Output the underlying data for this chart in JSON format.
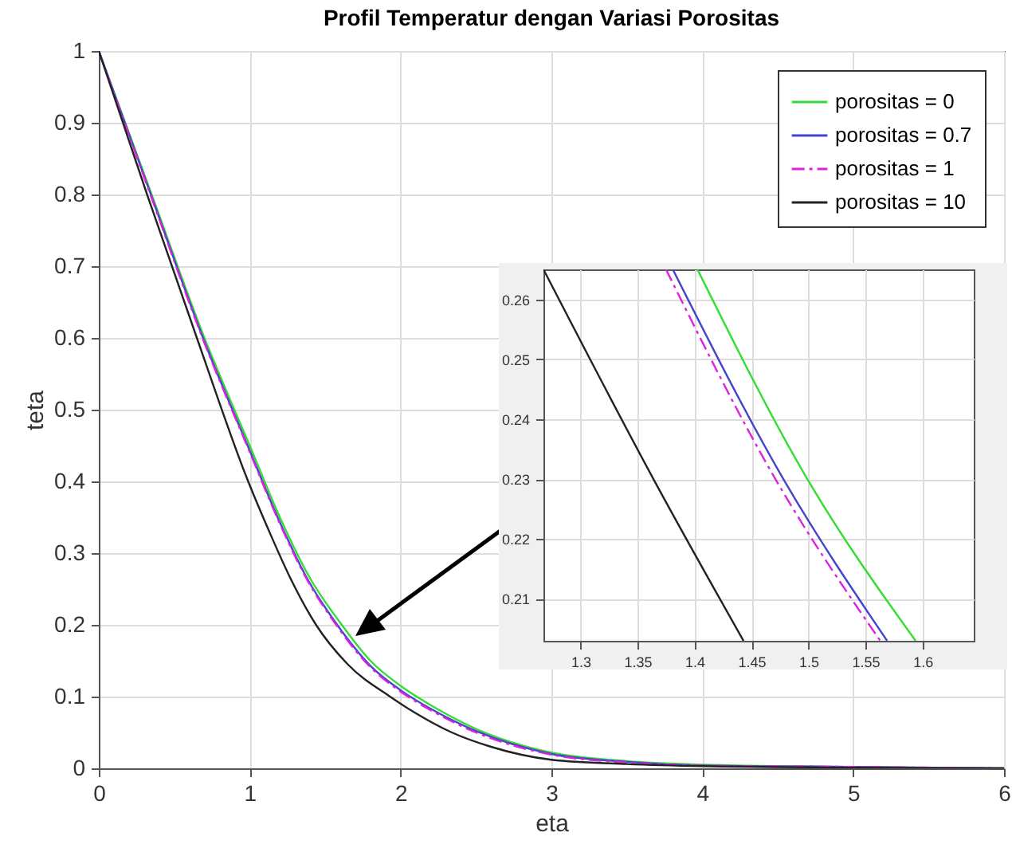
{
  "chart_data": [
    {
      "type": "line",
      "title": "Profil Temperatur dengan Variasi Porositas",
      "xlabel": "eta",
      "ylabel": "teta",
      "xlim": [
        0,
        6
      ],
      "xticks": [
        0,
        1,
        2,
        3,
        4,
        5,
        6
      ],
      "ylim": [
        0,
        1
      ],
      "yticks": [
        0,
        0.1,
        0.2,
        0.3,
        0.4,
        0.5,
        0.6,
        0.7,
        0.8,
        0.9,
        1
      ],
      "grid": true,
      "legend": "top right",
      "series": [
        {
          "name": "porositas = 0",
          "color": "#33dd33",
          "line_style": "solid",
          "x": [
            0,
            0.35,
            0.7,
            1,
            1.2,
            1.4,
            1.6,
            1.8,
            2,
            2.2,
            2.5,
            3,
            3.5,
            4,
            5,
            6
          ],
          "values": [
            1,
            0.8,
            0.6,
            0.45,
            0.35,
            0.265,
            0.203,
            0.15,
            0.115,
            0.088,
            0.055,
            0.022,
            0.01,
            0.005,
            0.002,
            0
          ]
        },
        {
          "name": "porositas = 0.7",
          "color": "#4444cc",
          "line_style": "solid",
          "x": [
            0,
            0.35,
            0.7,
            1,
            1.2,
            1.38,
            1.57,
            1.8,
            2,
            2.2,
            2.5,
            3,
            3.5,
            4,
            5,
            6
          ],
          "values": [
            1,
            0.797,
            0.595,
            0.443,
            0.343,
            0.265,
            0.203,
            0.143,
            0.109,
            0.083,
            0.052,
            0.02,
            0.009,
            0.004,
            0.002,
            0
          ]
        },
        {
          "name": "porositas = 1",
          "color": "#dd22dd",
          "line_style": "dashed",
          "x": [
            0,
            0.35,
            0.7,
            1,
            1.2,
            1.375,
            1.563,
            1.8,
            2,
            2.2,
            2.5,
            3,
            3.5,
            4,
            5,
            6
          ],
          "values": [
            1,
            0.795,
            0.593,
            0.441,
            0.341,
            0.265,
            0.203,
            0.141,
            0.107,
            0.081,
            0.05,
            0.019,
            0.008,
            0.004,
            0.002,
            0
          ]
        },
        {
          "name": "porositas = 10",
          "color": "#222222",
          "line_style": "solid",
          "x": [
            0,
            0.32,
            0.65,
            0.99,
            1.13,
            1.27,
            1.44,
            1.65,
            1.93,
            2.1,
            2.34,
            2.6,
            3,
            3.5,
            4,
            5,
            6
          ],
          "values": [
            1,
            0.8,
            0.6,
            0.4,
            0.33,
            0.265,
            0.2,
            0.145,
            0.1,
            0.077,
            0.05,
            0.03,
            0.012,
            0.006,
            0.003,
            0.001,
            0
          ]
        }
      ]
    },
    {
      "type": "line",
      "xlim": [
        1.2675,
        1.645
      ],
      "xticks": [
        1.3,
        1.35,
        1.4,
        1.45,
        1.5,
        1.55,
        1.6
      ],
      "ylim": [
        0.203,
        0.265
      ],
      "yticks": [
        0.21,
        0.22,
        0.23,
        0.24,
        0.25,
        0.26
      ],
      "grid": true,
      "series": [
        {
          "color": "#33dd33",
          "line_style": "solid",
          "x": [
            1.4026,
            1.499,
            1.594
          ],
          "values": [
            0.265,
            0.23,
            0.203
          ]
        },
        {
          "color": "#4444cc",
          "line_style": "solid",
          "x": [
            1.381,
            1.478,
            1.569
          ],
          "values": [
            0.265,
            0.23,
            0.203
          ]
        },
        {
          "color": "#dd22dd",
          "line_style": "dashed",
          "x": [
            1.375,
            1.471,
            1.563
          ],
          "values": [
            0.265,
            0.23,
            0.203
          ]
        },
        {
          "color": "#222222",
          "line_style": "solid",
          "x": [
            1.2675,
            1.364,
            1.443
          ],
          "values": [
            0.265,
            0.23,
            0.203
          ]
        }
      ]
    }
  ]
}
